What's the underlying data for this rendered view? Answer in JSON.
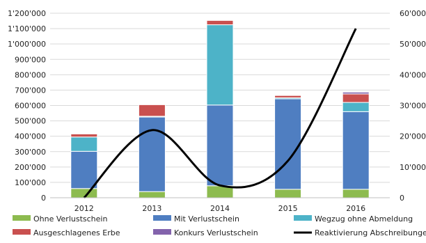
{
  "chart_data": {
    "type": "bar",
    "stacked": true,
    "categories": [
      "2012",
      "2013",
      "2014",
      "2015",
      "2016"
    ],
    "y_left": {
      "min": 0,
      "max": 1200000,
      "step": 100000,
      "tick_labels": [
        "0",
        "100'000",
        "200'000",
        "300'000",
        "400'000",
        "500'000",
        "600'000",
        "700'000",
        "800'000",
        "900'000",
        "1'000'000",
        "1'100'000",
        "1'200'000"
      ]
    },
    "y_right": {
      "min": 0,
      "max": 60000,
      "step": 10000,
      "tick_labels": [
        "0",
        "10'000",
        "20'000",
        "30'000",
        "40'000",
        "50'000",
        "60'000"
      ]
    },
    "grid": true,
    "legend_position": "bottom",
    "series": [
      {
        "name": "Ohne Verlustschein",
        "color": "#8DBB4F",
        "axis": "left",
        "values": [
          60000,
          40000,
          78000,
          55000,
          55000
        ]
      },
      {
        "name": "Mit Verlustschein",
        "color": "#4F7EC1",
        "axis": "left",
        "values": [
          242000,
          485000,
          525000,
          588000,
          505000
        ]
      },
      {
        "name": "Wegzug ohne Abmeldung",
        "color": "#4DB3C8",
        "axis": "left",
        "values": [
          93000,
          5000,
          522000,
          7000,
          60000
        ]
      },
      {
        "name": "Ausgeschlagenes Erbe",
        "color": "#C9504F",
        "axis": "left",
        "values": [
          20000,
          75000,
          28000,
          15000,
          55000
        ]
      },
      {
        "name": "Konkurs Verlustschein",
        "color": "#8363AC",
        "axis": "left",
        "values": [
          0,
          0,
          0,
          0,
          12000
        ]
      },
      {
        "name": "Reaktivierung Abschreibungen",
        "color": "#000000",
        "axis": "right",
        "type": "line",
        "values": [
          0,
          22000,
          4000,
          12000,
          55000
        ]
      }
    ]
  }
}
